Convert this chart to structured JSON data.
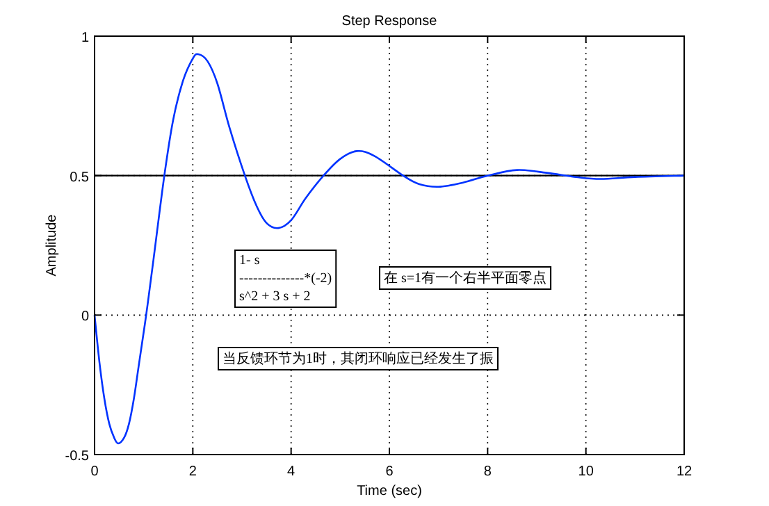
{
  "chart_data": {
    "type": "line",
    "title": "Step Response",
    "xlabel": "Time (sec)",
    "ylabel": "Amplitude",
    "x": [
      0,
      0.1,
      0.2,
      0.3,
      0.4,
      0.48,
      0.6,
      0.7,
      0.8,
      0.9,
      1.05,
      1.2,
      1.42,
      1.6,
      1.8,
      2.0,
      2.11,
      2.3,
      2.5,
      2.75,
      3.06,
      3.3,
      3.5,
      3.74,
      4.0,
      4.3,
      4.66,
      5.0,
      5.34,
      5.7,
      6.28,
      6.6,
      7.0,
      7.5,
      8.0,
      8.6,
      9.2,
      9.8,
      10.3,
      11.0,
      12
    ],
    "series": [
      {
        "color": "#0033ff",
        "values": [
          0,
          -0.17,
          -0.3,
          -0.39,
          -0.44,
          -0.46,
          -0.44,
          -0.39,
          -0.3,
          -0.18,
          0,
          0.2,
          0.5,
          0.7,
          0.84,
          0.92,
          0.935,
          0.91,
          0.83,
          0.67,
          0.5,
          0.39,
          0.33,
          0.312,
          0.34,
          0.42,
          0.5,
          0.56,
          0.588,
          0.57,
          0.5,
          0.47,
          0.46,
          0.475,
          0.5,
          0.52,
          0.51,
          0.495,
          0.488,
          0.495,
          0.5
        ]
      }
    ],
    "xlim": [
      0,
      12
    ],
    "xticks": [
      0,
      2,
      4,
      6,
      8,
      10,
      12
    ],
    "ylim": [
      -0.5,
      1
    ],
    "yticks": [
      -0.5,
      0,
      0.5,
      1
    ],
    "ref_lines": [
      {
        "axis": "y",
        "value": 0.5,
        "color": "#000000"
      }
    ],
    "grid": true,
    "line_style": "solid",
    "marker": "none",
    "annotations": [
      "1- s\n--------------*(-2)\ns^2 + 3 s + 2",
      "在 s=1有一个右半平面零点",
      "当反馈环节为1时，其闭环响应已经发生了振"
    ]
  }
}
